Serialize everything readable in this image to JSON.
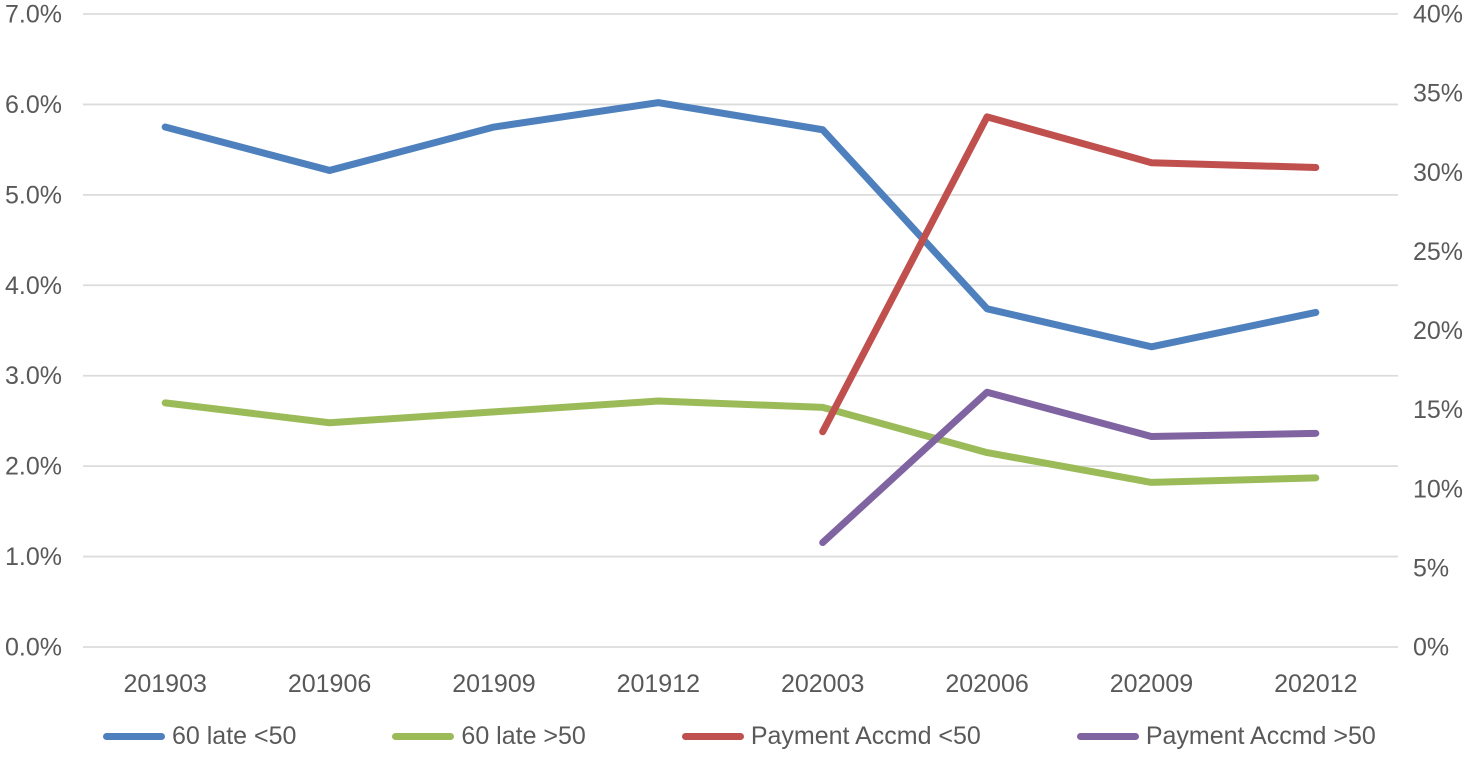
{
  "chart_data": {
    "type": "line",
    "title": "",
    "categories": [
      "201903",
      "201906",
      "201909",
      "201912",
      "202003",
      "202006",
      "202009",
      "202012"
    ],
    "series": [
      {
        "name": "60 late <50",
        "axis": "left",
        "color": "#4E80BD",
        "values": [
          5.75,
          5.27,
          5.75,
          6.02,
          5.72,
          3.74,
          3.32,
          3.7
        ]
      },
      {
        "name": "60 late >50",
        "axis": "left",
        "color": "#9BBB59",
        "values": [
          2.7,
          2.48,
          2.6,
          2.72,
          2.65,
          2.15,
          1.82,
          1.87
        ]
      },
      {
        "name": "Payment Accmd <50",
        "axis": "right",
        "color": "#C0504D",
        "values": [
          null,
          null,
          null,
          null,
          13.6,
          33.5,
          30.6,
          30.3
        ]
      },
      {
        "name": "Payment Accmd >50",
        "axis": "right",
        "color": "#8064A2",
        "values": [
          null,
          null,
          null,
          null,
          6.6,
          16.1,
          13.3,
          13.5
        ]
      }
    ],
    "left_axis": {
      "min": 0,
      "max": 7,
      "step": 1,
      "unit": "%",
      "labels": [
        "0.0%",
        "1.0%",
        "2.0%",
        "3.0%",
        "4.0%",
        "5.0%",
        "6.0%",
        "7.0%"
      ]
    },
    "right_axis": {
      "min": 0,
      "max": 40,
      "step": 5,
      "unit": "%",
      "labels": [
        "0%",
        "5%",
        "10%",
        "15%",
        "20%",
        "25%",
        "30%",
        "35%",
        "40%"
      ]
    },
    "grid": true,
    "gridline_color": "#DCDCDC",
    "axis_text_color": "#595959",
    "legend_position": "bottom"
  }
}
